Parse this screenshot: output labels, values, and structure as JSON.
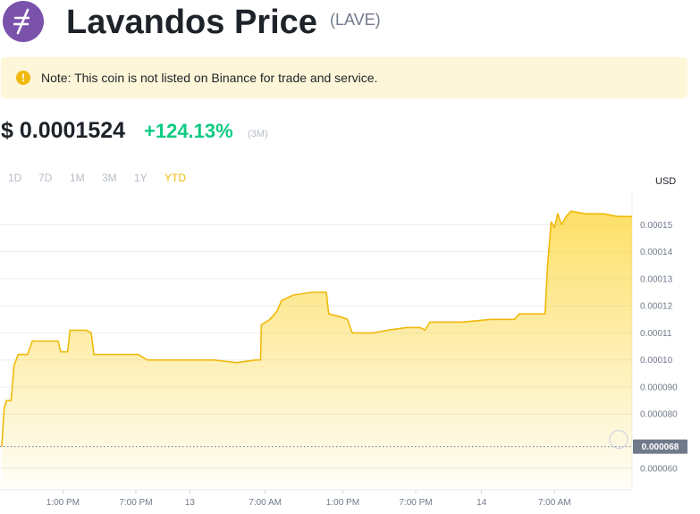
{
  "header": {
    "title": "Lavandos Price",
    "symbol": "(LAVE)"
  },
  "colors": {
    "logo": "#7b52ab",
    "accent": "#f0b90b",
    "positive": "#0ecb81",
    "note_bg": "#fef6d8"
  },
  "note": {
    "icon": "exclamation-icon",
    "text": "Note: This coin is not listed on Binance for trade and service."
  },
  "price": {
    "value": "$ 0.0001524",
    "change": "+124.13%",
    "period": "(3M)"
  },
  "ranges": [
    {
      "label": "1D",
      "active": false
    },
    {
      "label": "7D",
      "active": false
    },
    {
      "label": "1M",
      "active": false
    },
    {
      "label": "3M",
      "active": false
    },
    {
      "label": "1Y",
      "active": false
    },
    {
      "label": "YTD",
      "active": true
    }
  ],
  "chart_data": {
    "type": "area",
    "currency": "USD",
    "current_label": "0.000068",
    "y_ticks": [
      "0.000060",
      "0.000068",
      "0.000080",
      "0.000090",
      "0.00010",
      "0.00011",
      "0.00012",
      "0.00013",
      "0.00014",
      "0.00015"
    ],
    "x_ticks": [
      "1:00 PM",
      "7:00 PM",
      "13",
      "7:00 AM",
      "1:00 PM",
      "7:00 PM",
      "14",
      "7:00 AM"
    ],
    "ylim": [
      5.2e-05,
      0.000162
    ],
    "grid": true,
    "points": [
      [
        0.0,
        6.8e-05
      ],
      [
        0.5,
        8.2e-05
      ],
      [
        1.0,
        8.5e-05
      ],
      [
        2.0,
        8.5e-05
      ],
      [
        2.6,
        9.8e-05
      ],
      [
        3.5,
        0.000102
      ],
      [
        5.5,
        0.000102
      ],
      [
        6.5,
        0.000107
      ],
      [
        9.0,
        0.000107
      ],
      [
        12.0,
        0.000107
      ],
      [
        12.5,
        0.000103
      ],
      [
        14.0,
        0.000103
      ],
      [
        14.5,
        0.000111
      ],
      [
        18.0,
        0.000111
      ],
      [
        19.0,
        0.00011
      ],
      [
        19.6,
        0.000102
      ],
      [
        24.0,
        0.000102
      ],
      [
        29.0,
        0.000102
      ],
      [
        30.0,
        0.000101
      ],
      [
        31.0,
        0.0001
      ],
      [
        35.0,
        0.0001
      ],
      [
        45.0,
        0.0001
      ],
      [
        50.0,
        9.9e-05
      ],
      [
        54.0,
        0.0001
      ],
      [
        55.0,
        0.0001
      ],
      [
        55.2,
        0.000113
      ],
      [
        57.0,
        0.000115
      ],
      [
        58.5,
        0.000118
      ],
      [
        59.5,
        0.000122
      ],
      [
        62.0,
        0.000124
      ],
      [
        66.0,
        0.000125
      ],
      [
        69.0,
        0.000125
      ],
      [
        69.5,
        0.000117
      ],
      [
        72.0,
        0.000116
      ],
      [
        73.5,
        0.000115
      ],
      [
        74.5,
        0.00011
      ],
      [
        79.0,
        0.00011
      ],
      [
        82.0,
        0.000111
      ],
      [
        86.0,
        0.000112
      ],
      [
        89.0,
        0.000112
      ],
      [
        90.0,
        0.000111
      ],
      [
        91.0,
        0.000114
      ],
      [
        98.0,
        0.000114
      ],
      [
        104.0,
        0.000115
      ],
      [
        109.0,
        0.000115
      ],
      [
        110.0,
        0.000117
      ],
      [
        115.5,
        0.000117
      ],
      [
        116.0,
        0.000134
      ],
      [
        116.8,
        0.000151
      ],
      [
        117.5,
        0.000149
      ],
      [
        118.2,
        0.000154
      ],
      [
        119.0,
        0.00015
      ],
      [
        120.0,
        0.000153
      ],
      [
        121.0,
        0.000155
      ],
      [
        124.0,
        0.000154
      ],
      [
        128.0,
        0.000154
      ],
      [
        131.0,
        0.000153
      ],
      [
        134.0,
        0.000153
      ]
    ]
  }
}
